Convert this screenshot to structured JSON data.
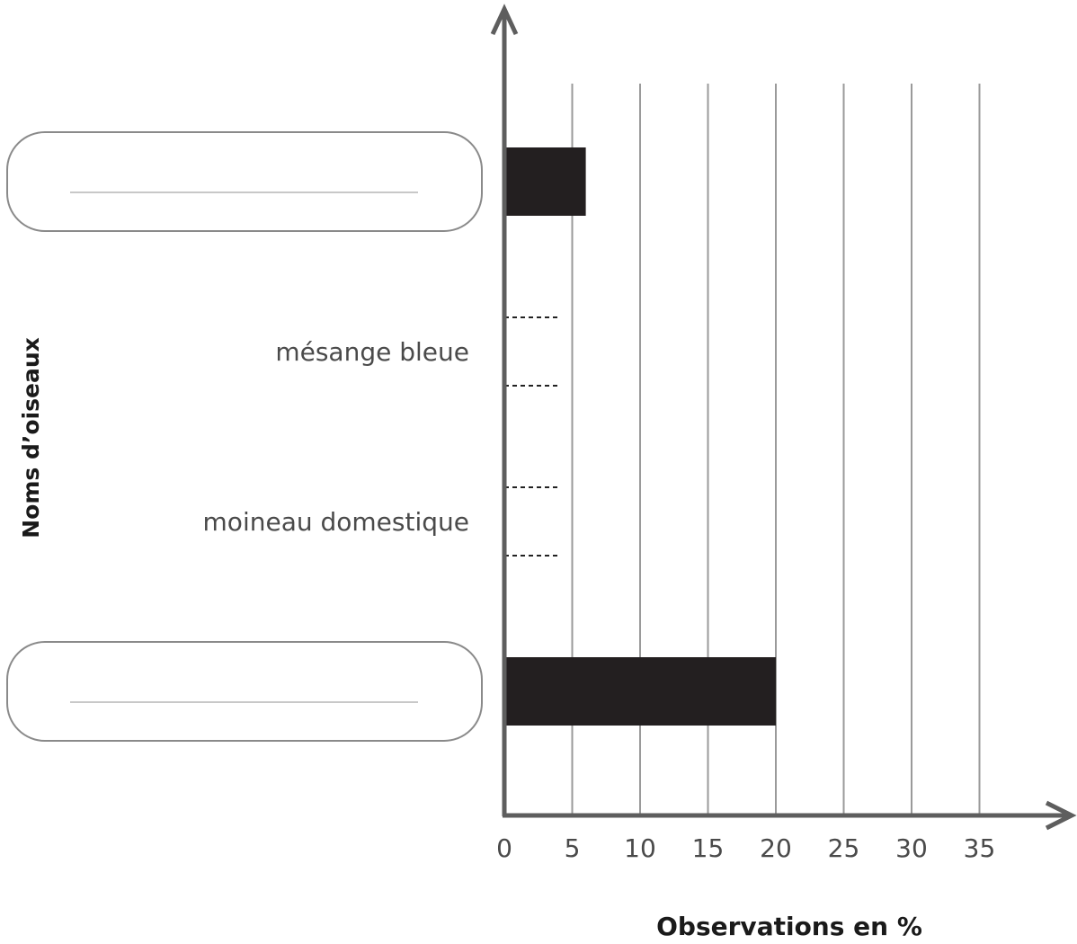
{
  "chart_data": {
    "type": "bar",
    "orientation": "horizontal",
    "categories": [
      "",
      "mésange bleue",
      "moineau domestique",
      ""
    ],
    "values": [
      6,
      null,
      null,
      20
    ],
    "xlabel": "Observations en %",
    "ylabel": "Noms d’oiseaux",
    "xlim": [
      0,
      40
    ],
    "xticks": [
      0,
      5,
      10,
      15,
      20,
      25,
      30,
      35
    ],
    "grid": true,
    "bar_color": "#231f20",
    "answer_box_categories": [
      0,
      3
    ],
    "to_draw_categories": [
      1,
      2
    ]
  }
}
